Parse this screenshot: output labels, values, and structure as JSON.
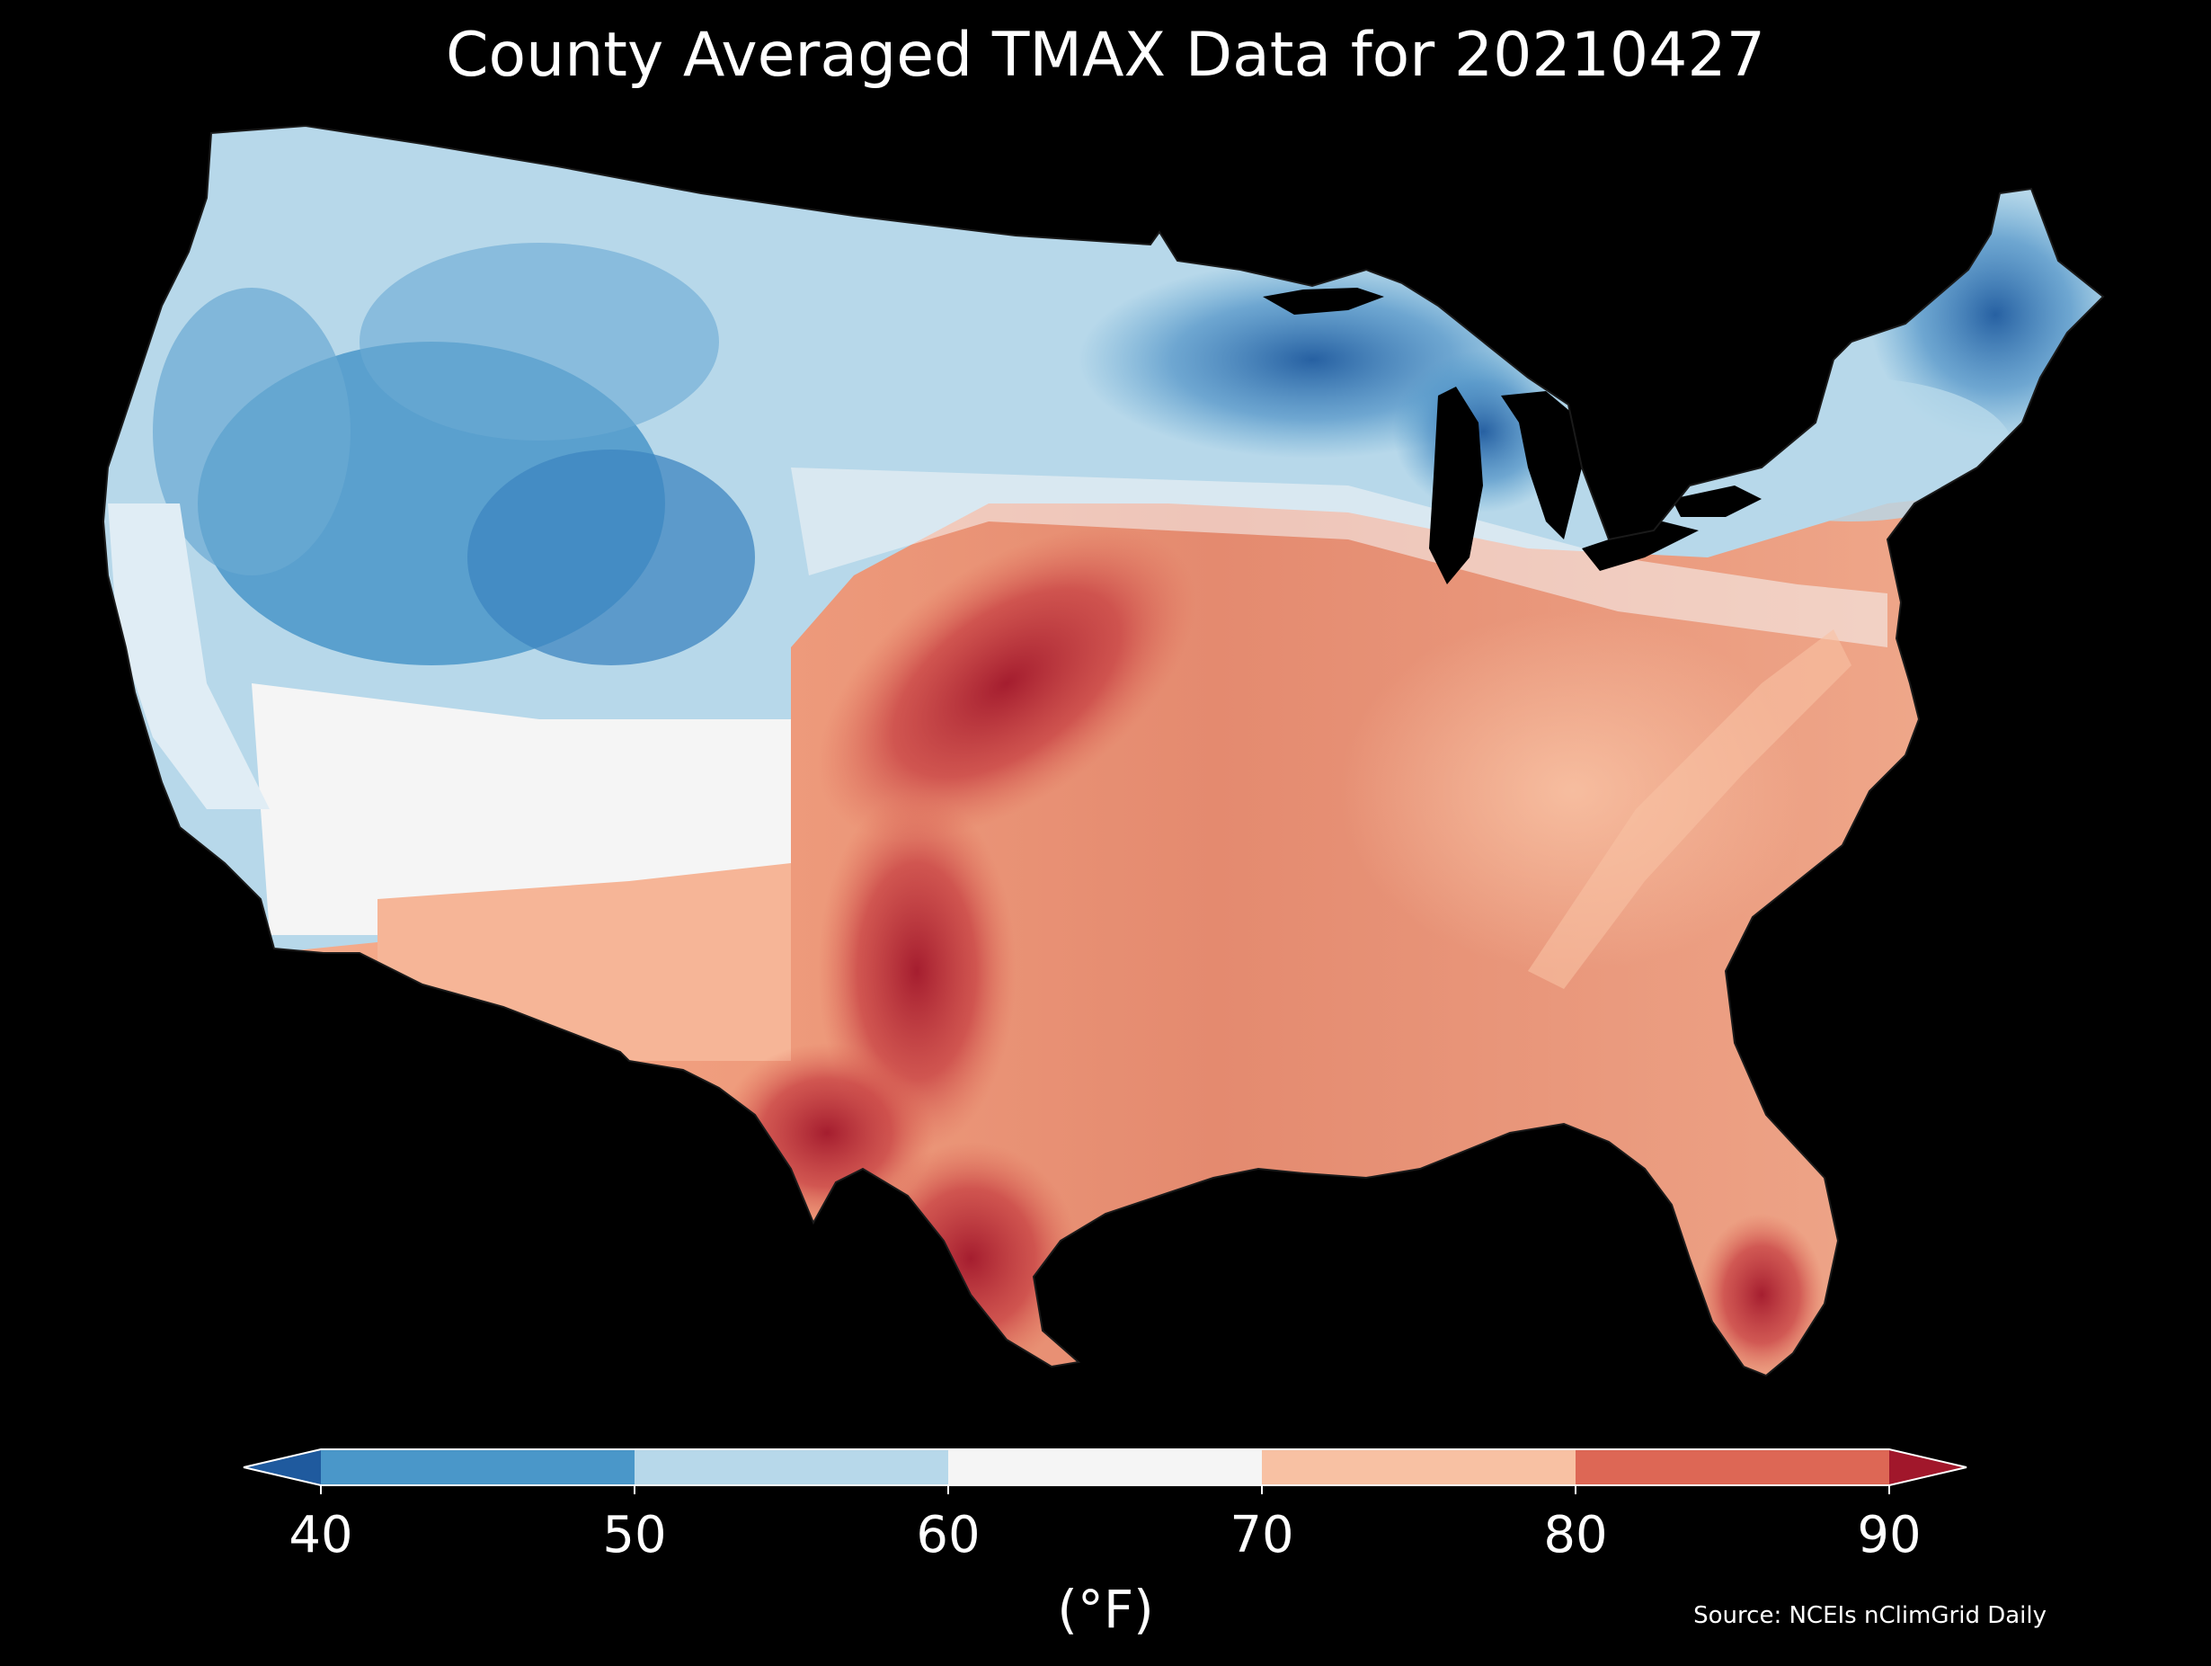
{
  "title": "County Averaged TMAX Data for 20210427",
  "colorbar": {
    "ticks": [
      "40",
      "50",
      "60",
      "70",
      "80",
      "90"
    ],
    "unit": "(°F)",
    "bins": [
      {
        "range": "<40",
        "color": "#1f5a9e"
      },
      {
        "range": "40-50",
        "color": "#4a97c9"
      },
      {
        "range": "50-60",
        "color": "#b7d8ea"
      },
      {
        "range": "60-70",
        "color": "#f5f5f5"
      },
      {
        "range": "70-80",
        "color": "#f8c1a3"
      },
      {
        "range": "80-90",
        "color": "#dd6755"
      },
      {
        "range": ">90",
        "color": "#a1172b"
      }
    ]
  },
  "source": "Source: NCEIs nClimGrid Daily",
  "map": {
    "region": "Contiguous United States",
    "variable": "TMAX",
    "pattern": "Cool (40-60°F) across the Northwest, northern Rockies, upper Great Lakes and New England; warmest (80-90°F+) along a corridor from south Texas and western Oklahoma into Kansas, Nebraska and Iowa; 70-80°F across much of the Southeast and Ohio Valley; >90°F in south Texas and south Florida"
  }
}
